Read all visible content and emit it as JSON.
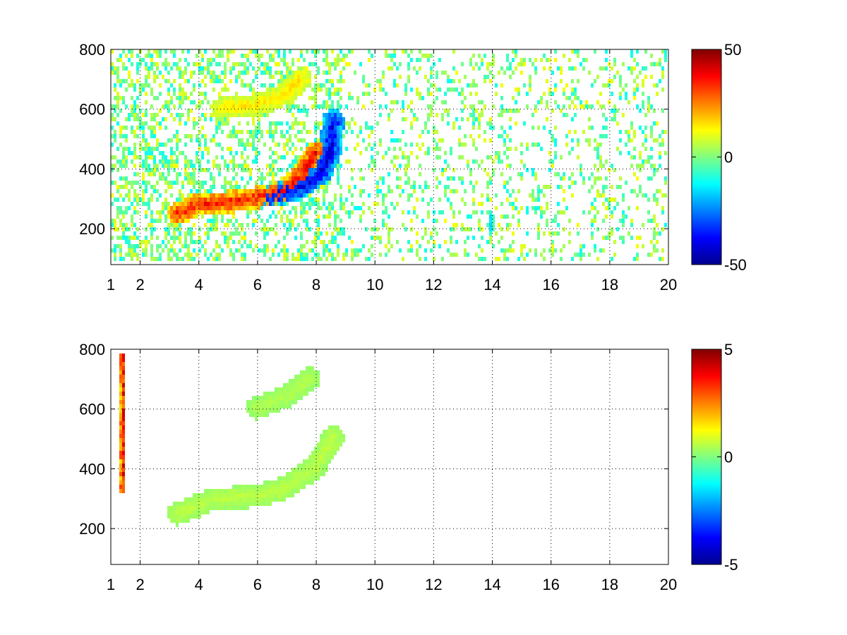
{
  "chart_data": [
    {
      "type": "heatmap",
      "title": "",
      "xlabel": "",
      "ylabel": "",
      "xlim": [
        1,
        20
      ],
      "ylim": [
        80,
        800
      ],
      "xticks": [
        1,
        2,
        4,
        6,
        8,
        10,
        12,
        14,
        16,
        18,
        20
      ],
      "xtick_labels": [
        "1",
        "2",
        "4",
        "6",
        "8",
        "10",
        "12",
        "14",
        "16",
        "18",
        "20"
      ],
      "yticks": [
        200,
        400,
        600,
        800
      ],
      "ytick_labels": [
        "200",
        "400",
        "600",
        "800"
      ],
      "grid": true,
      "grid_style": "dotted",
      "colormap": "jet",
      "clim": [
        -50,
        50
      ],
      "colorbar_ticks": [
        -50,
        0,
        50
      ],
      "colorbar_tick_labels": [
        "-50",
        "0",
        "50"
      ],
      "features": [
        {
          "description": "main curved ridge",
          "points": [
            [
              3.3,
              240
            ],
            [
              4,
              275
            ],
            [
              5,
              280
            ],
            [
              6,
              295
            ],
            [
              7,
              320
            ],
            [
              7.5,
              370
            ],
            [
              8.0,
              450
            ]
          ],
          "value": 35
        },
        {
          "description": "dark blue lower band",
          "points": [
            [
              6.5,
              300
            ],
            [
              7.5,
              330
            ],
            [
              8.2,
              380
            ],
            [
              8.5,
              450
            ],
            [
              8.6,
              560
            ]
          ],
          "value": -40
        },
        {
          "description": "upper ridge",
          "points": [
            [
              4.8,
              600
            ],
            [
              6,
              610
            ],
            [
              7,
              650
            ],
            [
              7.5,
              700
            ]
          ],
          "value": 15
        },
        {
          "description": "vertical stripe near 14",
          "points": [
            [
              14,
              180
            ],
            [
              14,
              240
            ]
          ],
          "value": -20
        }
      ]
    },
    {
      "type": "heatmap",
      "title": "",
      "xlabel": "",
      "ylabel": "",
      "xlim": [
        1,
        20
      ],
      "ylim": [
        80,
        800
      ],
      "xticks": [
        1,
        2,
        4,
        6,
        8,
        10,
        12,
        14,
        16,
        18,
        20
      ],
      "xtick_labels": [
        "1",
        "2",
        "4",
        "6",
        "8",
        "10",
        "12",
        "14",
        "16",
        "18",
        "20"
      ],
      "yticks": [
        200,
        400,
        600,
        800
      ],
      "ytick_labels": [
        "200",
        "400",
        "600",
        "800"
      ],
      "grid": true,
      "grid_style": "dotted",
      "colormap": "jet",
      "clim": [
        -5,
        5
      ],
      "colorbar_ticks": [
        -5,
        0,
        5
      ],
      "colorbar_tick_labels": [
        "-5",
        "0",
        "5"
      ],
      "features": [
        {
          "description": "green curved band",
          "points": [
            [
              3.3,
              240
            ],
            [
              4.5,
              290
            ],
            [
              6,
              300
            ],
            [
              7,
              330
            ],
            [
              8,
              400
            ],
            [
              8.6,
              500
            ]
          ],
          "value": 0.6
        },
        {
          "description": "vertical red line",
          "points": [
            [
              1.4,
              310
            ],
            [
              1.4,
              780
            ]
          ],
          "value": 4.8
        },
        {
          "description": "upper arc",
          "points": [
            [
              6,
              600
            ],
            [
              7,
              640
            ],
            [
              7.8,
              700
            ]
          ],
          "value": 0.5
        }
      ]
    }
  ]
}
